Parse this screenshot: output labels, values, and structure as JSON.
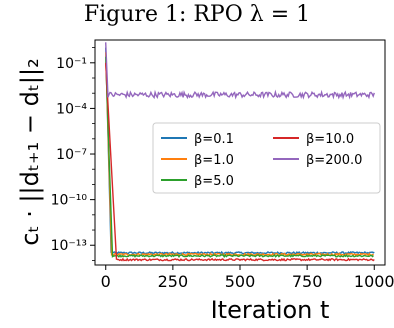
{
  "figure_title": "Figure 1: RPO λ = 1",
  "chart_data": {
    "type": "line",
    "title": "",
    "xlabel": "Iteration t",
    "ylabel": "cₜ · ||dₜ₊₁ − dₜ||₂",
    "yscale": "log",
    "xlim": [
      -40,
      1040
    ],
    "ylim_log10": [
      -14.3,
      0.5
    ],
    "xticks": [
      0,
      250,
      500,
      750,
      1000
    ],
    "yticks": [
      {
        "exp": -1,
        "label": "10⁻¹"
      },
      {
        "exp": -4,
        "label": "10⁻⁴"
      },
      {
        "exp": -7,
        "label": "10⁻⁷"
      },
      {
        "exp": -10,
        "label": "10⁻¹⁰"
      },
      {
        "exp": -13,
        "label": "10⁻¹³"
      }
    ],
    "grid": false,
    "legend_position": "center-right",
    "legend_columns": 2,
    "series": [
      {
        "name": "β=0.1",
        "color": "#1f77b4",
        "start_log10": 0.0,
        "converge_at": 20,
        "plateau_log10": -13.5
      },
      {
        "name": "β=1.0",
        "color": "#ff7f0e",
        "start_log10": -0.3,
        "converge_at": 22,
        "plateau_log10": -13.6
      },
      {
        "name": "β=5.0",
        "color": "#2ca02c",
        "start_log10": -0.6,
        "converge_at": 25,
        "plateau_log10": -13.7
      },
      {
        "name": "β=10.0",
        "color": "#d62728",
        "start_log10": -1.0,
        "converge_at": 40,
        "plateau_log10": -13.95
      },
      {
        "name": "β=200.0",
        "color": "#9467bd",
        "start_log10": 0.35,
        "converge_at": 8,
        "plateau_log10": -3.1
      }
    ]
  }
}
